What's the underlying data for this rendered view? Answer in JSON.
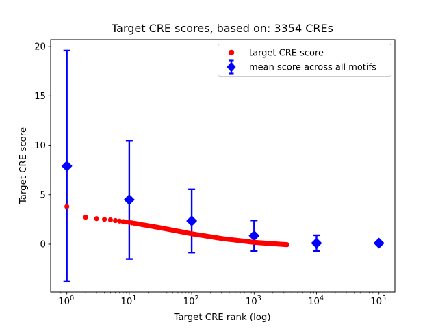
{
  "figure": {
    "background": "#ffffff",
    "text_color": "#000000",
    "spine_color": "#000000",
    "legend_border_color": "#cccccc",
    "legend_bg_color": "#ffffff"
  },
  "chart_data": {
    "type": "scatter",
    "title": "Target CRE scores, based on: 3354 CREs",
    "xlabel": "Target CRE rank (log)",
    "ylabel": "Target CRE score",
    "x_scale": "log",
    "grid": false,
    "legend_position": "upper right",
    "xlim": [
      0.55,
      180000
    ],
    "ylim": [
      -4.85,
      20.7
    ],
    "x_ticks": [
      1,
      10,
      100,
      1000,
      10000,
      100000
    ],
    "x_tick_labels": [
      "10⁰",
      "10¹",
      "10²",
      "10³",
      "10⁴",
      "10⁵"
    ],
    "y_ticks": [
      0,
      5,
      10,
      15,
      20
    ],
    "y_tick_labels": [
      "0",
      "5",
      "10",
      "15",
      "20"
    ],
    "series": [
      {
        "name": "target CRE score",
        "type": "scatter",
        "marker": "circle",
        "color": "#ff0000",
        "marker_radius_px": 3.6,
        "n_points": 3354,
        "rank_range": [
          1,
          3354
        ],
        "anchors_log10rank_value": [
          [
            0.0,
            3.8
          ],
          [
            0.301,
            2.72
          ],
          [
            0.477,
            2.58
          ],
          [
            0.699,
            2.45
          ],
          [
            1.0,
            2.2
          ],
          [
            1.5,
            1.65
          ],
          [
            2.0,
            1.05
          ],
          [
            2.5,
            0.55
          ],
          [
            3.0,
            0.18
          ],
          [
            3.301,
            0.05
          ],
          [
            3.5256,
            -0.05
          ]
        ]
      },
      {
        "name": "mean score across all motifs",
        "type": "errorbar",
        "marker": "diamond",
        "color": "#0000ff",
        "marker_half_px": 8,
        "x": [
          1,
          10,
          100,
          1000,
          10000,
          100000
        ],
        "y": [
          7.9,
          4.5,
          2.35,
          0.85,
          0.1,
          0.1
        ],
        "yerr": [
          11.7,
          6.0,
          3.2,
          1.55,
          0.8,
          0.0
        ]
      }
    ]
  }
}
